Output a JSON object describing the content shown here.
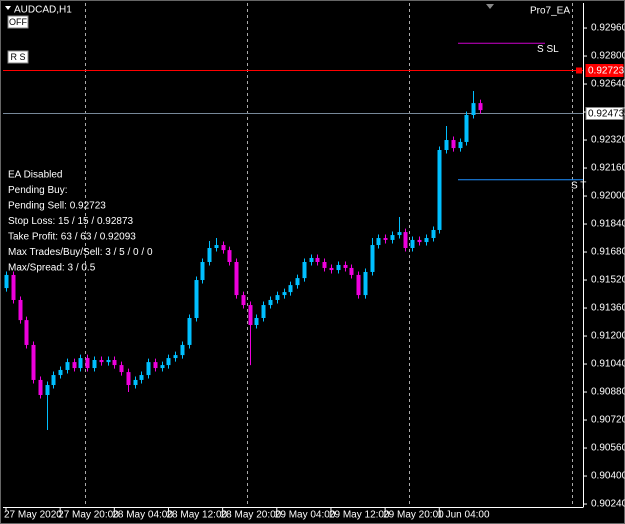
{
  "chart_data": {
    "type": "candlestick",
    "title": "AUDCAD,H1",
    "indicator": "Pro7_EA",
    "buttons": [
      "OFF",
      "R S"
    ],
    "info_lines": [
      "EA Disabled",
      "Pending Buy:",
      "Pending Sell: 0.92723",
      "Stop Loss: 15 / 15 / 0.92873",
      "Take Profit: 63 / 63 / 0.92093",
      "Max Trades/Buy/Sell: 3 / 5 / 0 / 0",
      "Max/Spread: 3 / 0.5"
    ],
    "categories": [
      "27 May 2020",
      null,
      null,
      null,
      null,
      null,
      null,
      null,
      "27 May 20:00",
      null,
      null,
      null,
      null,
      null,
      null,
      null,
      "28 May 04:00",
      null,
      null,
      null,
      null,
      null,
      null,
      null,
      "28 May 12:00",
      null,
      null,
      null,
      null,
      null,
      null,
      null,
      "28 May 20:00",
      null,
      null,
      null,
      null,
      null,
      null,
      null,
      "29 May 04:00",
      null,
      null,
      null,
      null,
      null,
      null,
      null,
      "29 May 12:00",
      null,
      null,
      null,
      null,
      null,
      null,
      null,
      "29 May 20:00",
      null,
      null,
      null,
      null,
      null,
      null,
      null,
      "1 Jun 04:00",
      null,
      null,
      null,
      null,
      null,
      null
    ],
    "open": [
      0.91474,
      0.91549,
      0.91406,
      0.91291,
      0.91149,
      0.90949,
      0.90863,
      0.9092,
      0.90977,
      0.91006,
      0.91051,
      0.91017,
      0.91074,
      0.91017,
      0.91063,
      0.91051,
      0.91063,
      0.91034,
      0.90994,
      0.9092,
      0.90949,
      0.90977,
      0.91051,
      0.91017,
      0.91034,
      0.91074,
      0.91091,
      0.91149,
      0.91303,
      0.9152,
      0.91623,
      0.91703,
      0.9172,
      0.91691,
      0.91623,
      0.91434,
      0.91377,
      0.91263,
      0.91303,
      0.91377,
      0.91406,
      0.91434,
      0.91451,
      0.91491,
      0.91531,
      0.91623,
      0.91646,
      0.91623,
      0.91589,
      0.91577,
      0.91606,
      0.91589,
      0.91549,
      0.91434,
      0.91566,
      0.9172,
      0.9176,
      0.91749,
      0.91777,
      0.91794,
      0.91703,
      0.91749,
      0.91737,
      0.9176,
      0.91806,
      0.92263,
      0.9232,
      0.92274,
      0.92309,
      0.92463,
      0.92531
    ],
    "high": [
      0.91569,
      0.91569,
      0.91426,
      0.91311,
      0.91169,
      0.90969,
      0.9094,
      0.90997,
      0.91026,
      0.91071,
      0.91071,
      0.91094,
      0.91094,
      0.91083,
      0.91083,
      0.91083,
      0.91083,
      0.91054,
      0.91014,
      0.90969,
      0.90997,
      0.91071,
      0.91071,
      0.91054,
      0.91094,
      0.91111,
      0.91169,
      0.91323,
      0.9154,
      0.91643,
      0.91743,
      0.9176,
      0.9174,
      0.91711,
      0.91643,
      0.91454,
      0.91397,
      0.91323,
      0.91397,
      0.91426,
      0.91454,
      0.91471,
      0.91511,
      0.91551,
      0.91643,
      0.91666,
      0.91666,
      0.91643,
      0.91609,
      0.91626,
      0.91626,
      0.91609,
      0.91569,
      0.91586,
      0.9176,
      0.9178,
      0.9178,
      0.91797,
      0.9188,
      0.91814,
      0.91769,
      0.91769,
      0.9178,
      0.91826,
      0.92283,
      0.924,
      0.9234,
      0.92329,
      0.92483,
      0.926,
      0.92551
    ],
    "low": [
      0.91454,
      0.91386,
      0.91271,
      0.91129,
      0.90929,
      0.90843,
      0.90663,
      0.909,
      0.90957,
      0.90986,
      0.90997,
      0.90997,
      0.90997,
      0.90997,
      0.91031,
      0.91031,
      0.91014,
      0.90974,
      0.9088,
      0.909,
      0.90929,
      0.90957,
      0.90997,
      0.90997,
      0.91014,
      0.91054,
      0.91071,
      0.91129,
      0.91283,
      0.915,
      0.91603,
      0.91683,
      0.91671,
      0.91603,
      0.91414,
      0.91357,
      0.91034,
      0.91243,
      0.91283,
      0.91357,
      0.91386,
      0.91414,
      0.91431,
      0.91471,
      0.91511,
      0.91603,
      0.91603,
      0.91569,
      0.91557,
      0.91557,
      0.91569,
      0.91529,
      0.91414,
      0.91414,
      0.91546,
      0.917,
      0.91729,
      0.91729,
      0.91757,
      0.91683,
      0.91683,
      0.91717,
      0.91717,
      0.9174,
      0.91786,
      0.92243,
      0.92254,
      0.92254,
      0.92289,
      0.92443,
      0.92471
    ],
    "close": [
      0.91549,
      0.91406,
      0.91291,
      0.91149,
      0.90949,
      0.90863,
      0.9092,
      0.90977,
      0.91006,
      0.91051,
      0.91017,
      0.91074,
      0.91017,
      0.91063,
      0.91051,
      0.91063,
      0.91034,
      0.90994,
      0.9092,
      0.90949,
      0.90977,
      0.91051,
      0.91017,
      0.91034,
      0.91074,
      0.91091,
      0.91149,
      0.91303,
      0.9152,
      0.91623,
      0.91703,
      0.9172,
      0.91691,
      0.91623,
      0.91434,
      0.91377,
      0.91263,
      0.91303,
      0.91377,
      0.91406,
      0.91434,
      0.91451,
      0.91491,
      0.91531,
      0.91623,
      0.91646,
      0.91623,
      0.91589,
      0.91577,
      0.91606,
      0.91589,
      0.91549,
      0.91434,
      0.91566,
      0.9172,
      0.9176,
      0.91749,
      0.91777,
      0.91794,
      0.91703,
      0.91749,
      0.91737,
      0.9176,
      0.91806,
      0.92263,
      0.9232,
      0.92274,
      0.92309,
      0.92463,
      0.92531,
      0.92491
    ],
    "up_color": "#00bfff",
    "down_color": "#ee00dd",
    "ylim": [
      0.90223,
      0.93103
    ],
    "yticks": [
      {
        "value": 0.9296,
        "label": "0.92960"
      },
      {
        "value": 0.928,
        "label": "0.92800"
      },
      {
        "value": 0.9264,
        "label": "0.92640"
      },
      {
        "value": 0.9248,
        "label": "0.92480"
      },
      {
        "value": 0.9232,
        "label": "0.92320"
      },
      {
        "value": 0.9216,
        "label": "0.92160"
      },
      {
        "value": 0.92,
        "label": "0.92000"
      },
      {
        "value": 0.9184,
        "label": "0.91840"
      },
      {
        "value": 0.9168,
        "label": "0.91680"
      },
      {
        "value": 0.9152,
        "label": "0.91520"
      },
      {
        "value": 0.9136,
        "label": "0.91360"
      },
      {
        "value": 0.912,
        "label": "0.91200"
      },
      {
        "value": 0.9104,
        "label": "0.91040"
      },
      {
        "value": 0.9088,
        "label": "0.90880"
      },
      {
        "value": 0.9072,
        "label": "0.90720"
      },
      {
        "value": 0.9056,
        "label": "0.90560"
      },
      {
        "value": 0.904,
        "label": "0.90400"
      },
      {
        "value": 0.9024,
        "label": "0.90240"
      }
    ],
    "price_lines": [
      {
        "value": 0.92723,
        "label": "0.92723",
        "color": "#ff0000"
      },
      {
        "value": 0.92473,
        "label": "0.92473",
        "color": "#778899"
      }
    ],
    "order_lines": [
      {
        "value": 0.92873,
        "label": "S SL",
        "color": "#cc00cc"
      },
      {
        "value": 0.92093,
        "label": "S T",
        "color": "#1e90ff"
      }
    ]
  }
}
